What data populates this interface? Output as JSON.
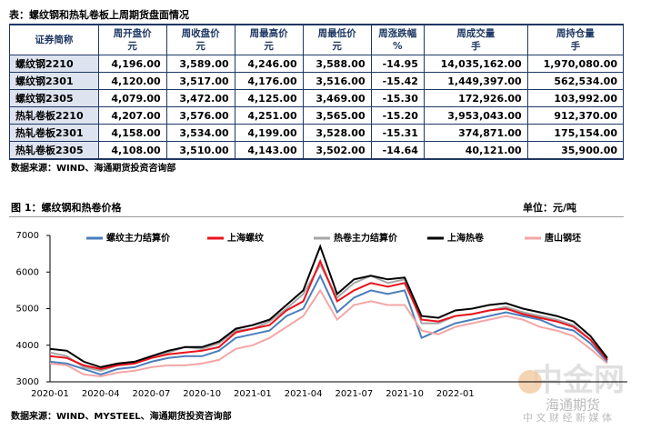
{
  "table": {
    "title": "表：螺纹钢和热轧卷板上周期货盘面情况",
    "headers": [
      [
        "证券简称"
      ],
      [
        "周开盘价",
        "元"
      ],
      [
        "周收盘价",
        "元"
      ],
      [
        "周最高价",
        "元"
      ],
      [
        "周最低价",
        "元"
      ],
      [
        "周涨跌幅",
        "%"
      ],
      [
        "周成交量",
        "手"
      ],
      [
        "周持仓量",
        "手"
      ]
    ],
    "rows": [
      [
        "螺纹钢2210",
        "4,196.00",
        "3,589.00",
        "4,246.00",
        "3,588.00",
        "-14.95",
        "14,035,162.00",
        "1,970,080.00"
      ],
      [
        "螺纹钢2301",
        "4,120.00",
        "3,517.00",
        "4,176.00",
        "3,516.00",
        "-15.42",
        "1,449,397.00",
        "562,534.00"
      ],
      [
        "螺纹钢2305",
        "4,079.00",
        "3,472.00",
        "4,125.00",
        "3,469.00",
        "-15.30",
        "172,926.00",
        "103,992.00"
      ],
      [
        "热轧卷板2210",
        "4,207.00",
        "3,576.00",
        "4,251.00",
        "3,565.00",
        "-15.20",
        "3,953,043.00",
        "912,370.00"
      ],
      [
        "热轧卷板2301",
        "4,158.00",
        "3,534.00",
        "4,199.00",
        "3,528.00",
        "-15.31",
        "374,871.00",
        "175,154.00"
      ],
      [
        "热轧卷板2305",
        "4,108.00",
        "3,510.00",
        "4,143.00",
        "3,502.00",
        "-14.64",
        "40,121.00",
        "35,900.00"
      ]
    ],
    "source": "数据来源：WIND、海通期货投资咨询部"
  },
  "chart_data": {
    "type": "line",
    "title": "图 1：螺纹钢和热卷价格",
    "unit": "单位：元/吨",
    "categories": [
      "2020-01",
      null,
      null,
      "2020-04",
      null,
      null,
      "2020-07",
      null,
      null,
      "2020-10",
      null,
      null,
      "2021-01",
      null,
      null,
      "2021-04",
      null,
      null,
      "2021-07",
      null,
      null,
      "2021-10",
      null,
      null,
      "2022-01",
      null,
      null,
      null,
      null,
      null,
      null,
      null,
      null,
      null
    ],
    "ylim": [
      3000,
      7000
    ],
    "yticks": [
      3000,
      4000,
      5000,
      6000,
      7000
    ],
    "grid": false,
    "series": [
      {
        "name": "螺纹主力结算价",
        "color": "#4a7ebb",
        "values": [
          3550,
          3500,
          3350,
          3200,
          3350,
          3400,
          3550,
          3650,
          3700,
          3700,
          3850,
          4200,
          4300,
          4400,
          4800,
          5000,
          5900,
          4900,
          5300,
          5500,
          5400,
          5500,
          4200,
          4400,
          4600,
          4700,
          4800,
          4900,
          4800,
          4700,
          4500,
          4400,
          4050,
          3550
        ]
      },
      {
        "name": "上海螺纹",
        "color": "#e8141c",
        "values": [
          3700,
          3650,
          3450,
          3350,
          3450,
          3500,
          3650,
          3750,
          3800,
          3850,
          3950,
          4350,
          4450,
          4550,
          4950,
          5200,
          6300,
          5200,
          5500,
          5700,
          5600,
          5700,
          4700,
          4650,
          4800,
          4850,
          4950,
          5000,
          4850,
          4750,
          4650,
          4500,
          4150,
          3600
        ]
      },
      {
        "name": "热卷主力结算价",
        "color": "#a6a6a6",
        "values": [
          3800,
          3700,
          3400,
          3300,
          3450,
          3500,
          3700,
          3800,
          3950,
          3900,
          4050,
          4400,
          4450,
          4650,
          5000,
          5400,
          6200,
          5300,
          5700,
          5900,
          5700,
          5800,
          4600,
          4600,
          4800,
          4850,
          4950,
          5050,
          4900,
          4800,
          4700,
          4550,
          4150,
          3600
        ]
      },
      {
        "name": "上海热卷",
        "color": "#000000",
        "values": [
          3900,
          3850,
          3550,
          3400,
          3500,
          3550,
          3700,
          3850,
          3950,
          3950,
          4100,
          4450,
          4550,
          4700,
          5100,
          5500,
          6700,
          5400,
          5800,
          5900,
          5800,
          5850,
          4800,
          4750,
          4950,
          5000,
          5100,
          5150,
          5000,
          4900,
          4800,
          4650,
          4250,
          3650
        ]
      },
      {
        "name": "唐山钢坯",
        "color": "#f4a6a6",
        "values": [
          3500,
          3450,
          3200,
          3150,
          3250,
          3300,
          3400,
          3450,
          3450,
          3500,
          3600,
          3900,
          4000,
          4200,
          4500,
          4800,
          5500,
          4700,
          5100,
          5200,
          5100,
          5100,
          4400,
          4300,
          4500,
          4600,
          4700,
          4800,
          4700,
          4500,
          4400,
          4250,
          3900,
          3500
        ]
      }
    ],
    "source": "数据来源：WIND、MYSTEEL、海通期货投资咨询部"
  },
  "watermark": {
    "logo": "中金网",
    "sub": "中 文 财 经 新 媒 体",
    "brand": "海通期货"
  }
}
